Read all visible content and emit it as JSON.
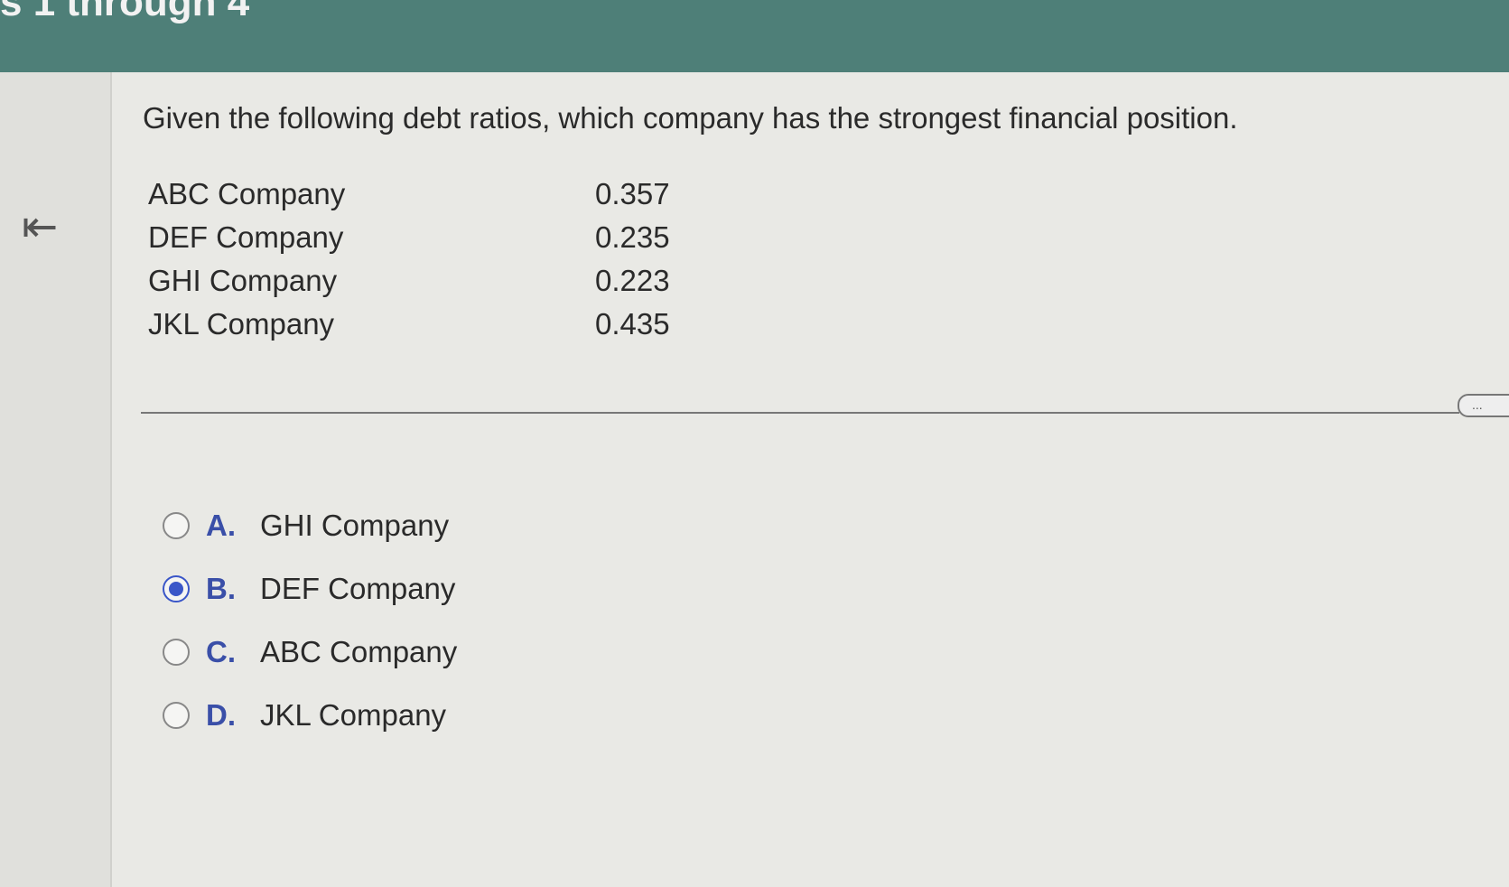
{
  "header": {
    "title": "s 1 through 4"
  },
  "question": "Given the following debt ratios, which company has the strongest financial position.",
  "companies": [
    {
      "name": "ABC Company",
      "ratio": "0.357"
    },
    {
      "name": "DEF Company",
      "ratio": "0.235"
    },
    {
      "name": "GHI Company",
      "ratio": "0.223"
    },
    {
      "name": "JKL Company",
      "ratio": "0.435"
    }
  ],
  "more_label": "...",
  "options": [
    {
      "letter": "A.",
      "label": "GHI Company",
      "selected": false
    },
    {
      "letter": "B.",
      "label": "DEF Company",
      "selected": true
    },
    {
      "letter": "C.",
      "label": "ABC Company",
      "selected": false
    },
    {
      "letter": "D.",
      "label": "JKL Company",
      "selected": false
    }
  ],
  "accent": "#3a56c8"
}
